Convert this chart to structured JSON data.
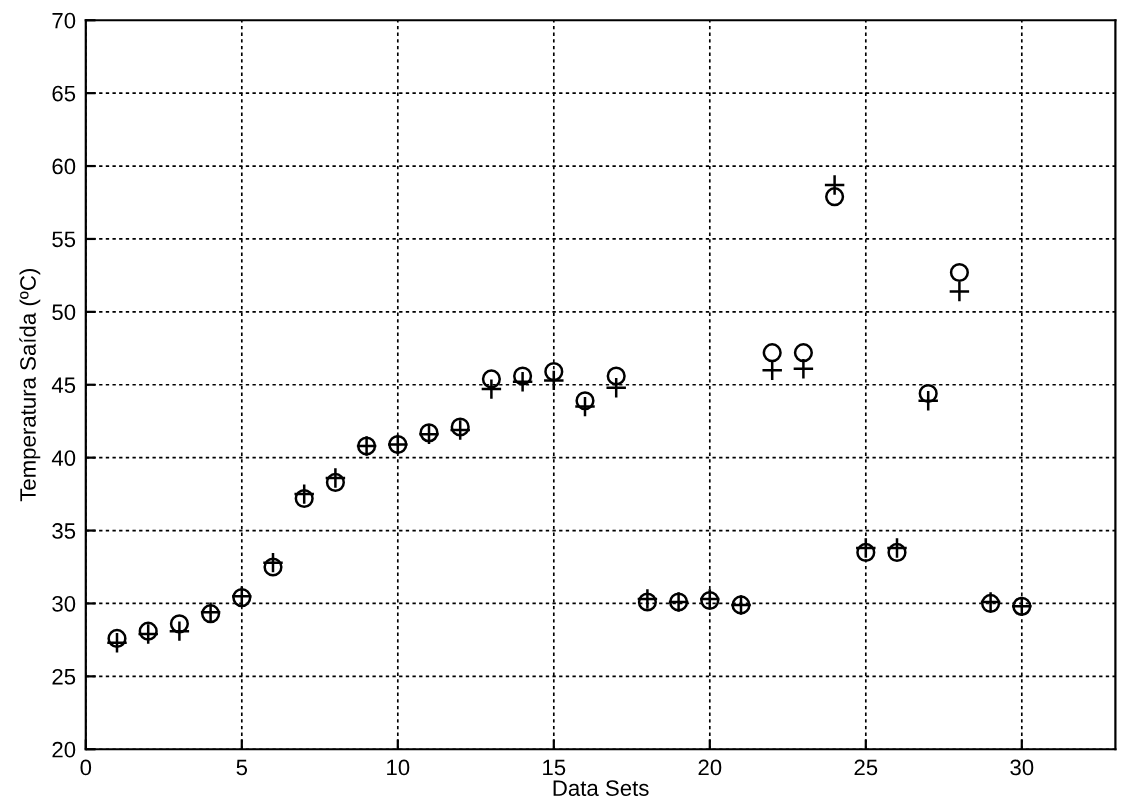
{
  "chart_data": {
    "type": "scatter",
    "xlabel": "Data Sets",
    "ylabel": "Temperatura Saída (ºC)",
    "xlim": [
      0,
      33
    ],
    "xticks": [
      0,
      5,
      10,
      15,
      20,
      25,
      30
    ],
    "ylim": [
      20,
      70
    ],
    "yticks": [
      20,
      25,
      30,
      35,
      40,
      45,
      50,
      55,
      60,
      65,
      70
    ],
    "grid": true,
    "legend": false,
    "x": [
      1,
      2,
      3,
      4,
      5,
      6,
      7,
      8,
      9,
      10,
      11,
      12,
      13,
      14,
      15,
      16,
      17,
      18,
      19,
      20,
      21,
      22,
      23,
      24,
      25,
      26,
      27,
      28,
      29,
      30
    ],
    "series": [
      {
        "color": "#000000",
        "marker": "circle",
        "values": [
          27.6,
          28.1,
          28.6,
          29.3,
          30.4,
          32.5,
          37.2,
          38.3,
          40.8,
          40.9,
          41.7,
          42.1,
          45.4,
          45.6,
          45.9,
          43.9,
          45.6,
          30.1,
          30.1,
          30.2,
          29.9,
          47.2,
          47.2,
          57.9,
          33.5,
          33.5,
          44.4,
          52.7,
          30.0,
          29.8
        ]
      },
      {
        "color": "#000000",
        "marker": "cross",
        "values": [
          27.3,
          27.9,
          28.1,
          29.4,
          30.5,
          32.8,
          37.5,
          38.6,
          40.8,
          40.9,
          41.6,
          41.9,
          44.7,
          45.2,
          45.3,
          43.5,
          44.8,
          30.3,
          30.1,
          30.3,
          29.9,
          46.0,
          46.1,
          58.7,
          33.8,
          33.8,
          43.9,
          51.4,
          30.1,
          29.8
        ]
      }
    ]
  }
}
